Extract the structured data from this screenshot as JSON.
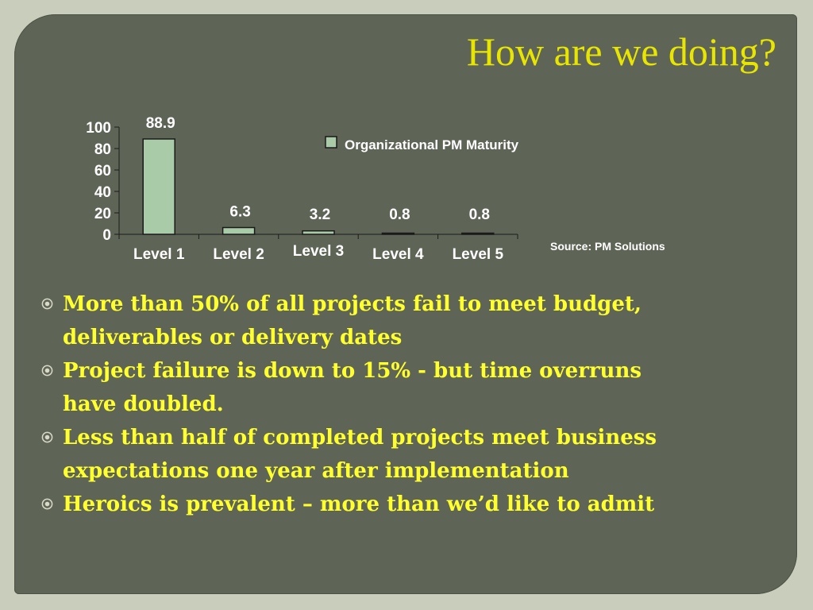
{
  "slide": {
    "title": "How are we doing?"
  },
  "chart_data": {
    "type": "bar",
    "categories": [
      "Level 1",
      "Level 2",
      "Level 3",
      "Level 4",
      "Level 5"
    ],
    "series": [
      {
        "name": "Organizational PM Maturity",
        "values": [
          88.9,
          6.3,
          3.2,
          0.8,
          0.8
        ]
      }
    ],
    "data_labels": [
      "88.9",
      "6.3",
      "3.2",
      "0.8",
      "0.8"
    ],
    "ylim": [
      0,
      100
    ],
    "yticks": [
      0,
      20,
      40,
      60,
      80,
      100
    ],
    "grid": false,
    "legend_position": "top-right",
    "source": "Source: PM Solutions",
    "colors": {
      "bar_fill": "#a9cba8",
      "bar_stroke": "#1a1a1a",
      "text": "#ffffff",
      "axis": "#1a1a1a"
    }
  },
  "bullets": [
    {
      "text": "More than 50% of all projects fail to meet budget, deliverables or delivery dates",
      "icon": "circled-dot-icon"
    },
    {
      "text": "Project failure is down to 15% - but time overruns have doubled.",
      "icon": "circled-dot-icon"
    },
    {
      "text": "Less than half of completed projects meet business expectations one year after implementation",
      "icon": "circled-dot-icon"
    },
    {
      "text": "Heroics is prevalent – more than we’d like to admit",
      "icon": "circled-dot-icon"
    }
  ],
  "colors": {
    "page_background": "#c9cdbc",
    "slide_background": "#5f6556",
    "title": "#e8e600",
    "bullet_text": "#ffff2e"
  }
}
